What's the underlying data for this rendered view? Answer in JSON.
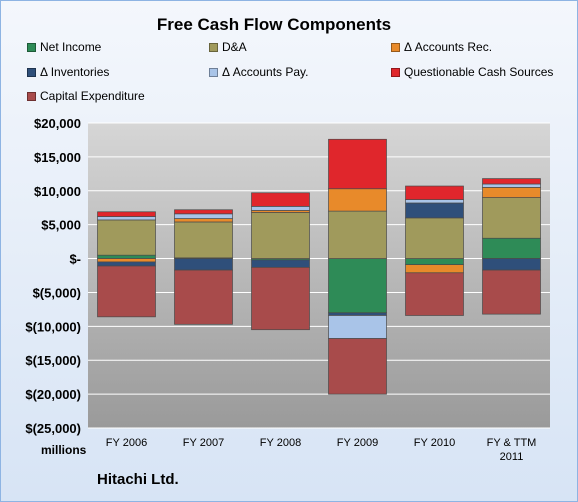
{
  "title": "Free Cash Flow Components",
  "company": "Hitachi Ltd.",
  "units_label": "millions",
  "chart_data": {
    "type": "bar",
    "stacked": true,
    "title": "Free Cash Flow Components",
    "xlabel": "",
    "ylabel": "millions",
    "ylim": [
      -25000,
      20000
    ],
    "yticks": [
      20000,
      15000,
      10000,
      5000,
      0,
      -5000,
      -10000,
      -15000,
      -20000,
      -25000
    ],
    "ytick_labels": [
      "$20,000",
      "$15,000",
      "$10,000",
      "$5,000",
      "$-",
      "$(5,000)",
      "$(10,000)",
      "$(15,000)",
      "$(20,000)",
      "$(25,000)"
    ],
    "categories": [
      "FY 2006",
      "FY 2007",
      "FY 2008",
      "FY 2009",
      "FY 2010",
      "FY & TTM 2011"
    ],
    "grid": true,
    "legend_position": "top",
    "series": [
      {
        "name": "Net Income",
        "color": "#2e8b57",
        "values": [
          500,
          100,
          -200,
          -8000,
          -900,
          3000
        ]
      },
      {
        "name": "D&A",
        "color": "#a09a5c",
        "values": [
          5200,
          5300,
          6800,
          7000,
          6000,
          6000
        ]
      },
      {
        "name": "Δ Accounts Rec.",
        "color": "#e88a2a",
        "values": [
          -500,
          500,
          300,
          3300,
          -1200,
          1500
        ]
      },
      {
        "name": "Δ Inventories",
        "color": "#2f4f7a",
        "values": [
          -600,
          -1700,
          -1100,
          -400,
          2200,
          -1700
        ]
      },
      {
        "name": "Δ Accounts Pay.",
        "color": "#a9c4e8",
        "values": [
          500,
          700,
          600,
          -3400,
          500,
          500
        ]
      },
      {
        "name": "Questionable Cash Sources",
        "color": "#e0262c",
        "values": [
          700,
          600,
          2000,
          7300,
          2000,
          800
        ]
      },
      {
        "name": "Capital Expenditure",
        "color": "#a84b4b",
        "values": [
          -7500,
          -8000,
          -9200,
          -8200,
          -6300,
          -6500
        ]
      }
    ]
  }
}
